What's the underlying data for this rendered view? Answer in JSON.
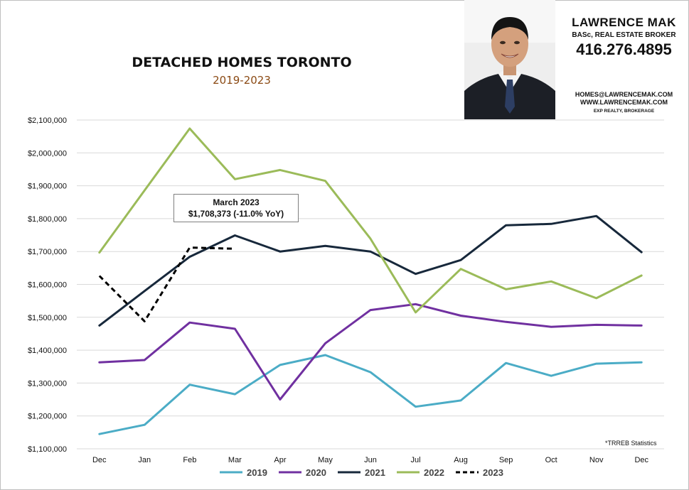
{
  "header": {
    "title": "DETACHED HOMES TORONTO",
    "subtitle": "2019-2023"
  },
  "agent": {
    "name": "LAWRENCE MAK",
    "credentials": "BASc, REAL ESTATE BROKER",
    "phone": "416.276.4895",
    "email": "HOMES@LAWRENCEMAK.COM",
    "website": "WWW.LAWRENCEMAK.COM",
    "brokerage": "EXP REALTY, BROKERAGE"
  },
  "annotation": {
    "line1": "March 2023",
    "line2": "$1,708,373  (-11.0%  YoY)"
  },
  "source_note": "*TRREB Statistics",
  "colors": {
    "2019": "#4bacc6",
    "2020": "#7030a0",
    "2021": "#17283b",
    "2022": "#9bbb59",
    "2023": "#000000"
  },
  "chart_data": {
    "type": "line",
    "categories": [
      "Dec",
      "Jan",
      "Feb",
      "Mar",
      "Apr",
      "May",
      "Jun",
      "Jul",
      "Aug",
      "Sep",
      "Oct",
      "Nov",
      "Dec"
    ],
    "ylim": [
      1100000,
      2100000
    ],
    "yticks": [
      1100000,
      1200000,
      1300000,
      1400000,
      1500000,
      1600000,
      1700000,
      1800000,
      1900000,
      2000000,
      2100000
    ],
    "ytick_labels": [
      "$1,100,000",
      "$1,200,000",
      "$1,300,000",
      "$1,400,000",
      "$1,500,000",
      "$1,600,000",
      "$1,700,000",
      "$1,800,000",
      "$1,900,000",
      "$2,000,000",
      "$2,100,000"
    ],
    "grid": true,
    "legend_position": "bottom",
    "series": [
      {
        "name": "2019",
        "color": "#4bacc6",
        "dashed": false,
        "values": [
          1145000,
          1173000,
          1295000,
          1266000,
          1355000,
          1385000,
          1333000,
          1228000,
          1247000,
          1361000,
          1322000,
          1359000,
          1363000
        ]
      },
      {
        "name": "2020",
        "color": "#7030a0",
        "dashed": false,
        "values": [
          1363000,
          1370000,
          1484000,
          1465000,
          1250000,
          1421000,
          1522000,
          1540000,
          1505000,
          1486000,
          1471000,
          1477000,
          1475000
        ]
      },
      {
        "name": "2021",
        "color": "#17283b",
        "dashed": false,
        "values": [
          1475000,
          1580000,
          1684000,
          1749000,
          1700000,
          1717000,
          1700000,
          1632000,
          1674000,
          1780000,
          1784000,
          1808000,
          1698000
        ]
      },
      {
        "name": "2022",
        "color": "#9bbb59",
        "dashed": false,
        "values": [
          1697000,
          1886000,
          2074000,
          1920000,
          1948000,
          1915000,
          1739000,
          1515000,
          1647000,
          1585000,
          1609000,
          1558000,
          1627000
        ]
      },
      {
        "name": "2023",
        "color": "#000000",
        "dashed": true,
        "values": [
          1626000,
          1488000,
          1712000,
          1708373,
          null,
          null,
          null,
          null,
          null,
          null,
          null,
          null,
          null
        ]
      }
    ]
  }
}
